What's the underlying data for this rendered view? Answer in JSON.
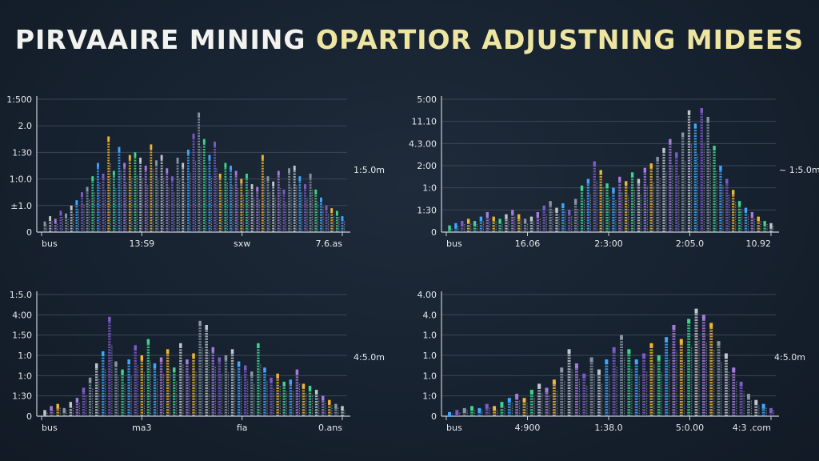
{
  "title": {
    "part1": "PIRVAAIRE MINING",
    "part2": "OPARTIOR ADJUSTNING MIDEES"
  },
  "colors": {
    "background": "#172230",
    "title_white": "#f2f2ee",
    "title_yellow": "#eee6a0",
    "gridline": "#3a4656",
    "axis": "#c9ced4",
    "palette": [
      "#8a94a4",
      "#7f5acb",
      "#3fa7ff",
      "#3dd68a",
      "#f2b632",
      "#a77be0",
      "#c2c7ce"
    ]
  },
  "chart_data": [
    {
      "type": "bar",
      "title": "",
      "y_ticks": [
        "0",
        "±1.0",
        "1:0.0",
        "1:30",
        "2.0",
        "1:500"
      ],
      "x_ticks": [
        "bus",
        "13:S9",
        "sxw",
        "7.6.as"
      ],
      "side_label": "1:5.0m",
      "ylim": [
        0,
        5
      ],
      "values": [
        0.4,
        0.6,
        0.5,
        0.8,
        0.7,
        1.0,
        1.2,
        1.5,
        1.7,
        2.1,
        2.6,
        2.2,
        3.6,
        2.3,
        3.2,
        2.6,
        2.9,
        3.0,
        2.8,
        2.5,
        3.3,
        2.7,
        2.9,
        2.4,
        2.1,
        2.8,
        2.6,
        3.1,
        3.7,
        4.5,
        3.5,
        2.9,
        3.4,
        2.2,
        2.6,
        2.5,
        2.3,
        2.0,
        2.2,
        1.8,
        1.7,
        2.9,
        2.1,
        1.9,
        2.3,
        1.6,
        2.4,
        2.5,
        2.1,
        1.8,
        2.2,
        1.6,
        1.3,
        1.0,
        0.9,
        0.8,
        0.6
      ]
    },
    {
      "type": "bar",
      "title": "",
      "y_ticks": [
        "0",
        "1:30",
        "1:0",
        "2:00",
        "4.3.00",
        "11.10",
        "5:00"
      ],
      "x_ticks": [
        "bus",
        "16.06",
        "2:3:00",
        "2:05.0",
        "10.92"
      ],
      "side_label": "~ 1:5.0m",
      "ylim": [
        0,
        6
      ],
      "values": [
        0.3,
        0.4,
        0.5,
        0.6,
        0.5,
        0.7,
        0.9,
        0.7,
        0.6,
        0.8,
        1.0,
        0.8,
        0.6,
        0.7,
        0.9,
        1.2,
        1.4,
        1.1,
        1.3,
        1.0,
        1.5,
        2.1,
        2.4,
        3.2,
        2.8,
        2.2,
        2.0,
        2.5,
        2.3,
        2.7,
        2.4,
        2.9,
        3.1,
        3.4,
        3.8,
        4.2,
        3.6,
        4.5,
        5.5,
        4.9,
        5.6,
        5.2,
        3.9,
        3.0,
        2.4,
        1.9,
        1.4,
        1.1,
        0.9,
        0.7,
        0.5,
        0.4
      ]
    },
    {
      "type": "bar",
      "title": "",
      "y_ticks": [
        "0",
        "1:30",
        "1:0",
        "1:0",
        "1:50",
        "4:00",
        "1:5.0"
      ],
      "x_ticks": [
        "bus",
        "ma3",
        "fia",
        "0.ans"
      ],
      "side_label": "4:5.0m",
      "ylim": [
        0,
        6
      ],
      "values": [
        0.3,
        0.5,
        0.6,
        0.4,
        0.7,
        0.9,
        1.4,
        1.9,
        2.6,
        3.2,
        4.9,
        2.7,
        2.3,
        2.8,
        3.5,
        3.0,
        3.8,
        2.6,
        2.9,
        3.3,
        2.4,
        3.6,
        2.8,
        3.1,
        4.7,
        4.5,
        3.4,
        2.9,
        3.0,
        3.3,
        2.7,
        2.5,
        2.2,
        3.6,
        2.4,
        1.9,
        2.1,
        1.7,
        1.8,
        2.3,
        1.6,
        1.5,
        1.3,
        1.0,
        0.8,
        0.6,
        0.5
      ]
    },
    {
      "type": "bar",
      "title": "",
      "y_ticks": [
        "0",
        "1:0",
        "1.0",
        "1.0",
        "1.0",
        "4.0",
        "4.00"
      ],
      "x_ticks": [
        "bus",
        "4:900",
        "1:38.0",
        "5:0.00",
        "4:3 .com"
      ],
      "side_label": "4:5.0m",
      "ylim": [
        0,
        6
      ],
      "values": [
        0.2,
        0.3,
        0.4,
        0.5,
        0.4,
        0.6,
        0.5,
        0.7,
        0.9,
        1.1,
        0.9,
        1.3,
        1.6,
        1.4,
        1.8,
        2.4,
        3.3,
        2.6,
        2.1,
        2.9,
        2.3,
        2.8,
        3.4,
        4.0,
        3.3,
        2.8,
        3.1,
        3.6,
        3.0,
        3.9,
        4.5,
        3.8,
        4.8,
        5.3,
        5.0,
        4.6,
        3.7,
        3.1,
        2.4,
        1.7,
        1.1,
        0.8,
        0.6,
        0.4
      ]
    }
  ]
}
